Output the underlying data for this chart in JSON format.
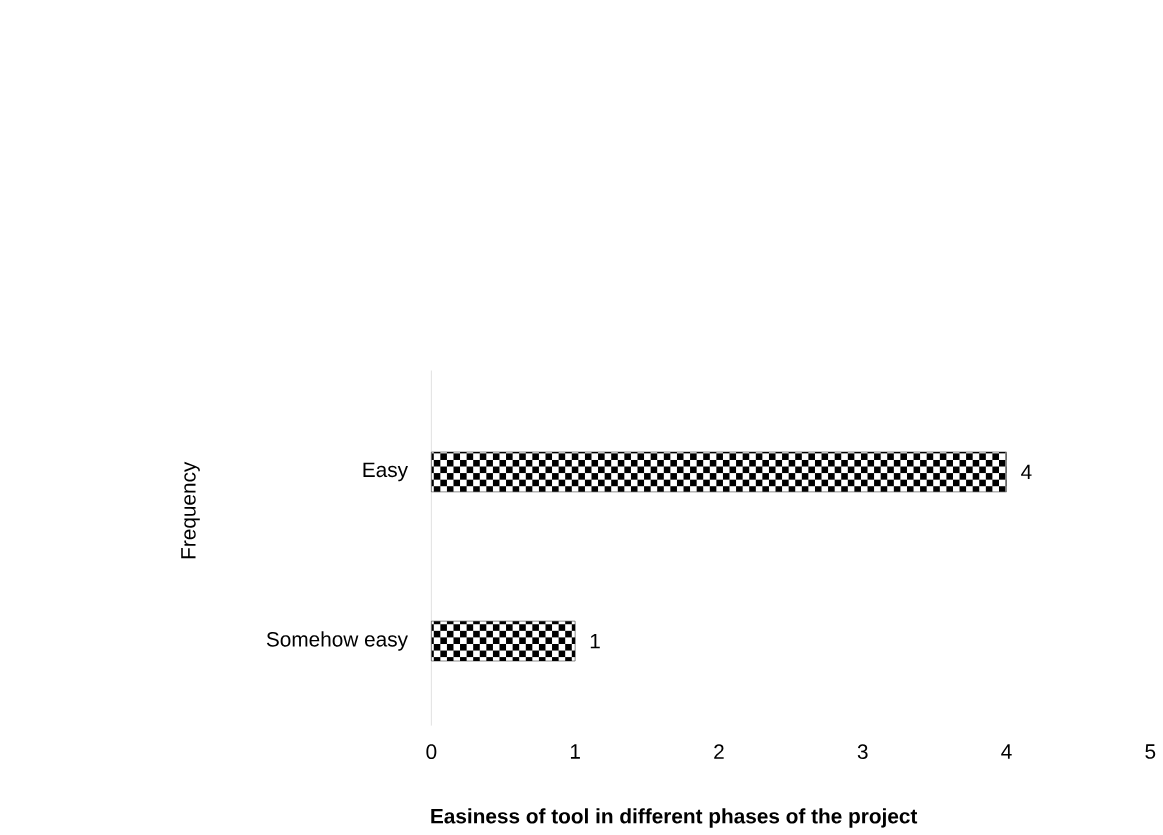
{
  "chart_data": {
    "type": "bar",
    "orientation": "horizontal",
    "xlabel": "Easiness of tool in different phases of the project",
    "ylabel": "Frequency",
    "categories": [
      "Easy",
      "Somehow easy"
    ],
    "values": [
      4,
      1
    ],
    "color": "#000000",
    "xlim": [
      0,
      5
    ],
    "xticks": [
      0,
      1,
      2,
      3,
      4,
      5
    ],
    "grid": false,
    "data_labels": true
  }
}
